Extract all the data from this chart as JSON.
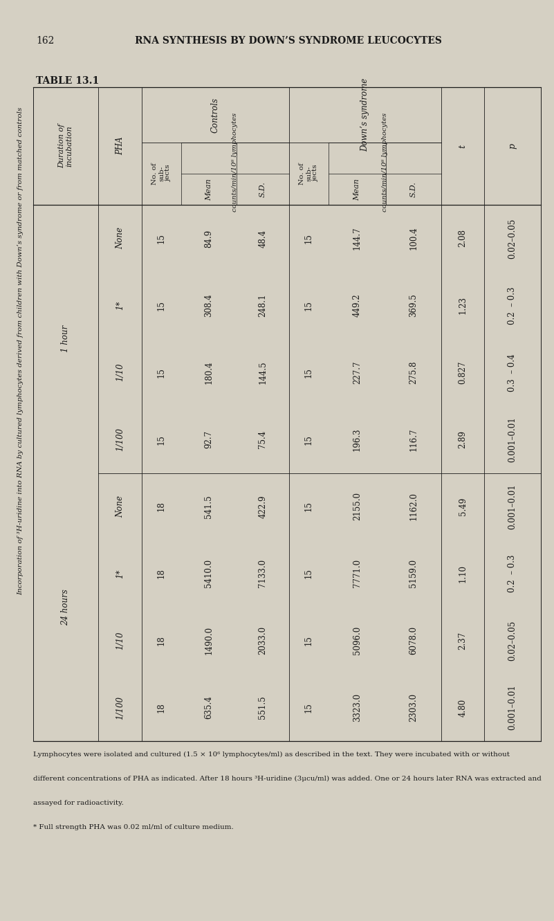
{
  "page_number": "162",
  "page_header": "RNA SYNTHESIS BY DOWN’S SYNDROME LEUCOCYTES",
  "table_title": "TABLE 13.1",
  "table_subtitle": "Incorporation of ³H-uridine into RNA by cultured lymphocytes derived from children with Down’s syndrome or from matched controls",
  "rows": [
    {
      "duration": "1 hour",
      "pha": "None",
      "c_n": "15",
      "c_mean": "84.9",
      "c_sd": "48.4",
      "ds_n": "15",
      "ds_mean": "144.7",
      "ds_sd": "100.4",
      "t": "2.08",
      "p": "0.02–0.05"
    },
    {
      "duration": "",
      "pha": "1*",
      "c_n": "15",
      "c_mean": "308.4",
      "c_sd": "248.1",
      "ds_n": "15",
      "ds_mean": "449.2",
      "ds_sd": "369.5",
      "t": "1.23",
      "p": "0.2  – 0.3"
    },
    {
      "duration": "",
      "pha": "1/10",
      "c_n": "15",
      "c_mean": "180.4",
      "c_sd": "144.5",
      "ds_n": "15",
      "ds_mean": "227.7",
      "ds_sd": "275.8",
      "t": "0.827",
      "p": "0.3  – 0.4"
    },
    {
      "duration": "",
      "pha": "1/100",
      "c_n": "15",
      "c_mean": "92.7",
      "c_sd": "75.4",
      "ds_n": "15",
      "ds_mean": "196.3",
      "ds_sd": "116.7",
      "t": "2.89",
      "p": "0.001–0.01"
    },
    {
      "duration": "24 hours",
      "pha": "None",
      "c_n": "18",
      "c_mean": "541.5",
      "c_sd": "422.9",
      "ds_n": "15",
      "ds_mean": "2155.0",
      "ds_sd": "1162.0",
      "t": "5.49",
      "p": "0.001–0.01"
    },
    {
      "duration": "",
      "pha": "1*",
      "c_n": "18",
      "c_mean": "5410.0",
      "c_sd": "7133.0",
      "ds_n": "15",
      "ds_mean": "7771.0",
      "ds_sd": "5159.0",
      "t": "1.10",
      "p": "0.2  – 0.3"
    },
    {
      "duration": "",
      "pha": "1/10",
      "c_n": "18",
      "c_mean": "1490.0",
      "c_sd": "2033.0",
      "ds_n": "15",
      "ds_mean": "5096.0",
      "ds_sd": "6078.0",
      "t": "2.37",
      "p": "0.02–0.05"
    },
    {
      "duration": "",
      "pha": "1/100",
      "c_n": "18",
      "c_mean": "635.4",
      "c_sd": "551.5",
      "ds_n": "15",
      "ds_mean": "3323.0",
      "ds_sd": "2303.0",
      "t": "4.80",
      "p": "0.001–0.01"
    }
  ],
  "footnotes": [
    "Lymphocytes were isolated and cultured (1.5 × 10⁶ lymphocytes/ml) as described in the text. They were incubated with or without",
    "different concentrations of PHA as indicated. After 18 hours ³H-uridine (3μcu/ml) was added. One or 24 hours later RNA was extracted and",
    "assayed for radioactivity.",
    "* Full strength PHA was 0.02 ml/ml of culture medium."
  ],
  "bg_color": "#d5d0c3",
  "text_color": "#1a1a1a",
  "fig_w": 8.01,
  "fig_h": 13.31,
  "dpi": 100
}
